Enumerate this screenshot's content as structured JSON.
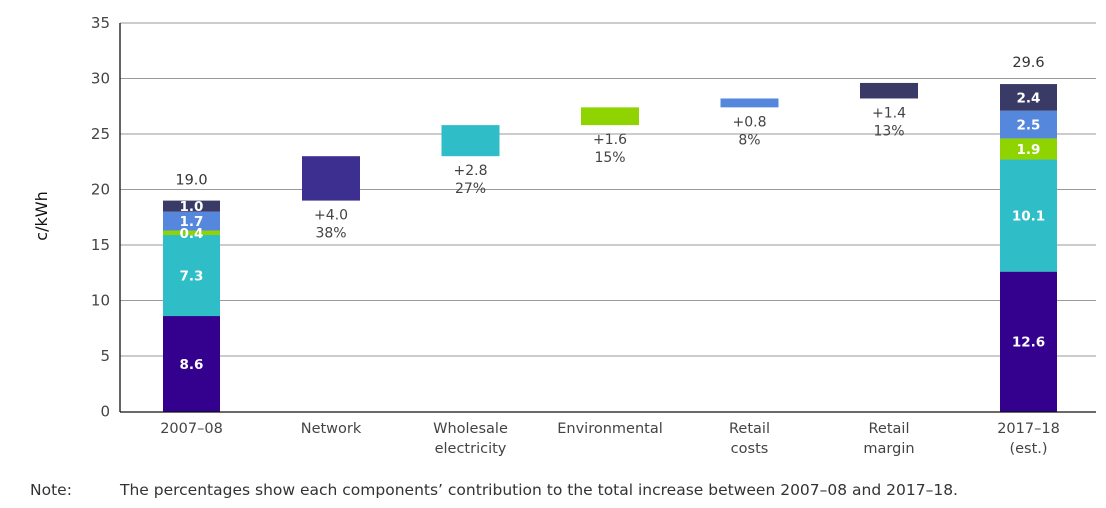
{
  "chart_data": {
    "type": "bar",
    "subtype": "waterfall-stacked",
    "title": "",
    "xlabel": "",
    "ylabel": "c/kWh",
    "ylim": [
      0,
      35
    ],
    "yticks": [
      0,
      5,
      10,
      15,
      20,
      25,
      30,
      35
    ],
    "grid": true,
    "legend": "none",
    "colors": {
      "Network": "#34008e",
      "Wholesale electricity": "#2fbdc7",
      "Environmental": "#8fd400",
      "Retail costs": "#5588dd",
      "Retail margin": "#3a3a66",
      "Network (increment)": "#3c2f8f"
    },
    "categories": [
      [
        "2007–08"
      ],
      [
        "Network"
      ],
      [
        "Wholesale",
        "electricity"
      ],
      [
        "Environmental"
      ],
      [
        "Retail",
        "costs"
      ],
      [
        "Retail",
        "margin"
      ],
      [
        "2017–18",
        "(est.)"
      ]
    ],
    "stacked_bars": [
      {
        "category_index": 0,
        "total": 19.0,
        "total_label": "19.0",
        "segments": [
          {
            "component": "Network",
            "value": 8.6,
            "label": "8.6"
          },
          {
            "component": "Wholesale electricity",
            "value": 7.3,
            "label": "7.3"
          },
          {
            "component": "Environmental",
            "value": 0.4,
            "label": "0.4"
          },
          {
            "component": "Retail costs",
            "value": 1.7,
            "label": "1.7"
          },
          {
            "component": "Retail margin",
            "value": 1.0,
            "label": "1.0"
          }
        ]
      },
      {
        "category_index": 6,
        "total": 29.6,
        "total_label": "29.6",
        "segments": [
          {
            "component": "Network",
            "value": 12.6,
            "label": "12.6"
          },
          {
            "component": "Wholesale electricity",
            "value": 10.1,
            "label": "10.1"
          },
          {
            "component": "Environmental",
            "value": 1.9,
            "label": "1.9"
          },
          {
            "component": "Retail costs",
            "value": 2.5,
            "label": "2.5"
          },
          {
            "component": "Retail margin",
            "value": 2.4,
            "label": "2.4"
          }
        ]
      }
    ],
    "increments": [
      {
        "category_index": 1,
        "component": "Network (increment)",
        "start": 19.0,
        "delta": 4.0,
        "delta_label": "+4.0",
        "share_label": "38%"
      },
      {
        "category_index": 2,
        "component": "Wholesale electricity",
        "start": 23.0,
        "delta": 2.8,
        "delta_label": "+2.8",
        "share_label": "27%"
      },
      {
        "category_index": 3,
        "component": "Environmental",
        "start": 25.8,
        "delta": 1.6,
        "delta_label": "+1.6",
        "share_label": "15%"
      },
      {
        "category_index": 4,
        "component": "Retail costs",
        "start": 27.4,
        "delta": 0.8,
        "delta_label": "+0.8",
        "share_label": "8%"
      },
      {
        "category_index": 5,
        "component": "Retail margin",
        "start": 28.2,
        "delta": 1.4,
        "delta_label": "+1.4",
        "share_label": "13%"
      }
    ]
  },
  "note": {
    "label": "Note:",
    "text": "The percentages show each components’ contribution to the total increase between 2007–08 and 2017–18."
  }
}
